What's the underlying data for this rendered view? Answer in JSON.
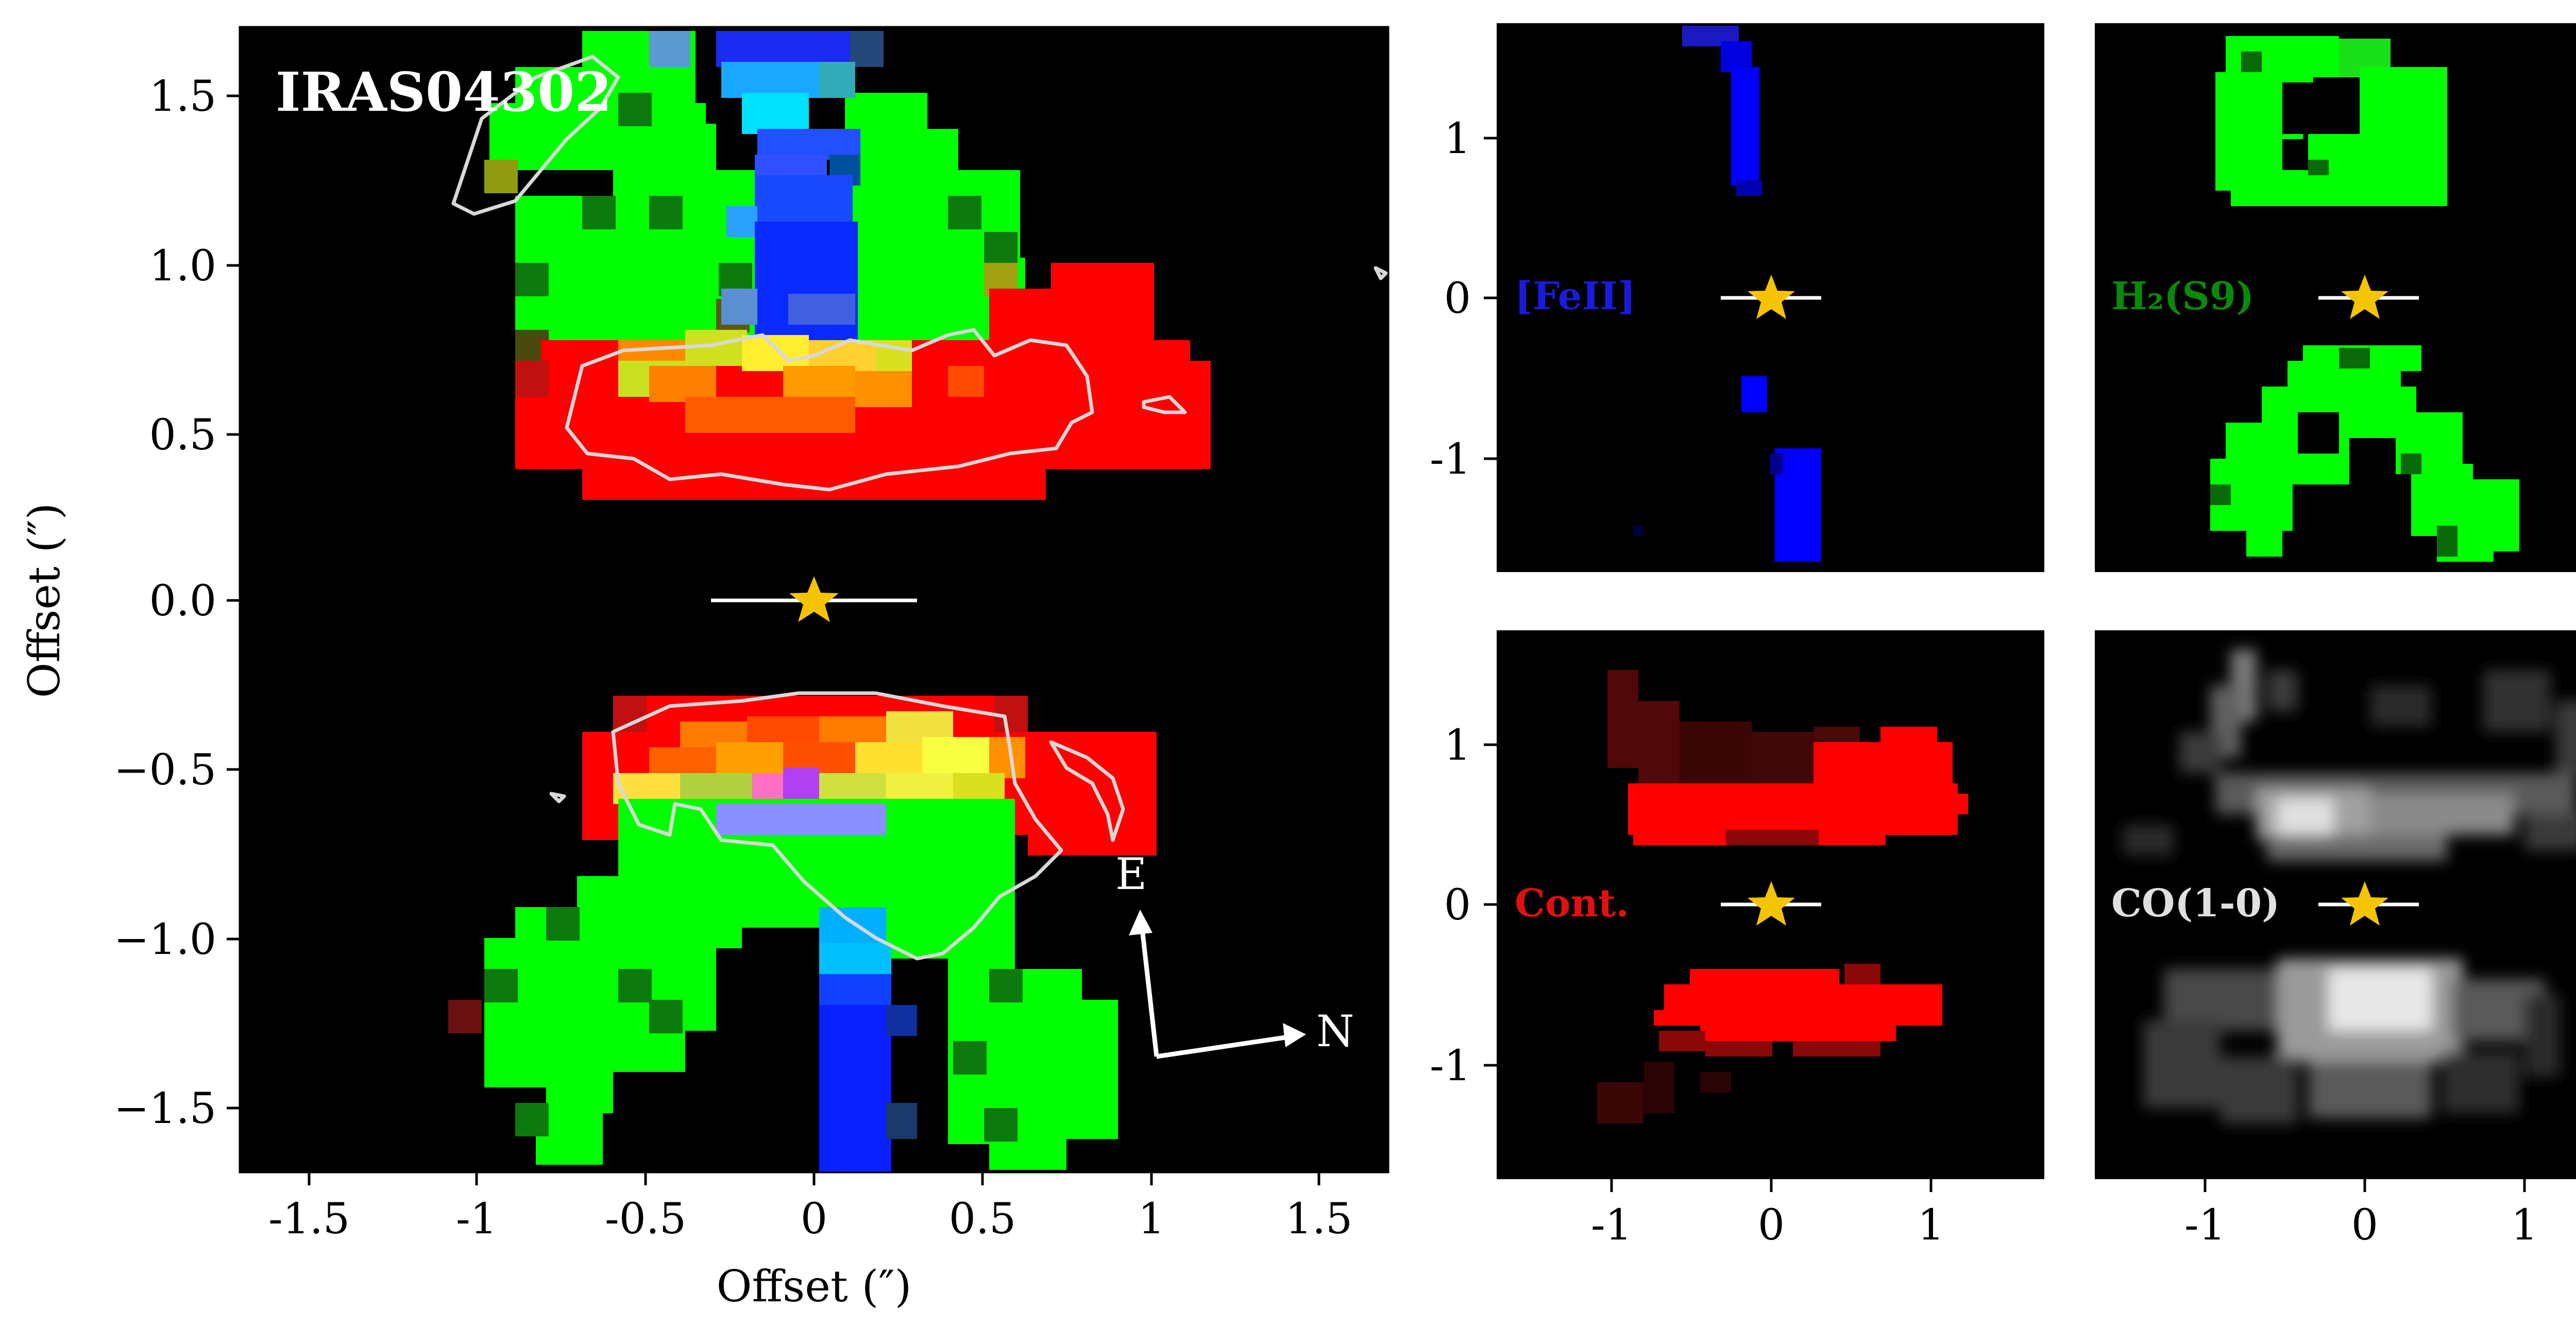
{
  "figure": {
    "object_name": "IRAS04302",
    "main_panel": {
      "xlabel": "Offset (″)",
      "ylabel": "Offset (″)",
      "xticks": [
        "-1.5",
        "-1",
        "-0.5",
        "0",
        "0.5",
        "1",
        "1.5"
      ],
      "yticks": [
        "1.5",
        "1.0",
        "0.5",
        "0.0",
        "−0.5",
        "−1.0",
        "−1.5"
      ],
      "compass": {
        "east": "E",
        "north": "N"
      }
    },
    "sub_panels": [
      {
        "id": "feii",
        "label": "[FeII]",
        "color": "#1a1adc"
      },
      {
        "id": "h2",
        "label": "H₂(S9)",
        "color": "#0a8a0a"
      },
      {
        "id": "cont",
        "label": "Cont.",
        "color": "#e01010"
      },
      {
        "id": "co",
        "label": "CO(1-0)",
        "color": "#e0e0e0"
      }
    ],
    "sub_yticks": [
      "1",
      "0",
      "-1"
    ],
    "sub_xticks": [
      "-1",
      "0",
      "1"
    ],
    "colors": {
      "background": "#000000",
      "star": "#f5c400",
      "red": "#ff0000",
      "green": "#00ff00",
      "blue": "#0000ff",
      "contour": "#d8d8d8"
    }
  }
}
